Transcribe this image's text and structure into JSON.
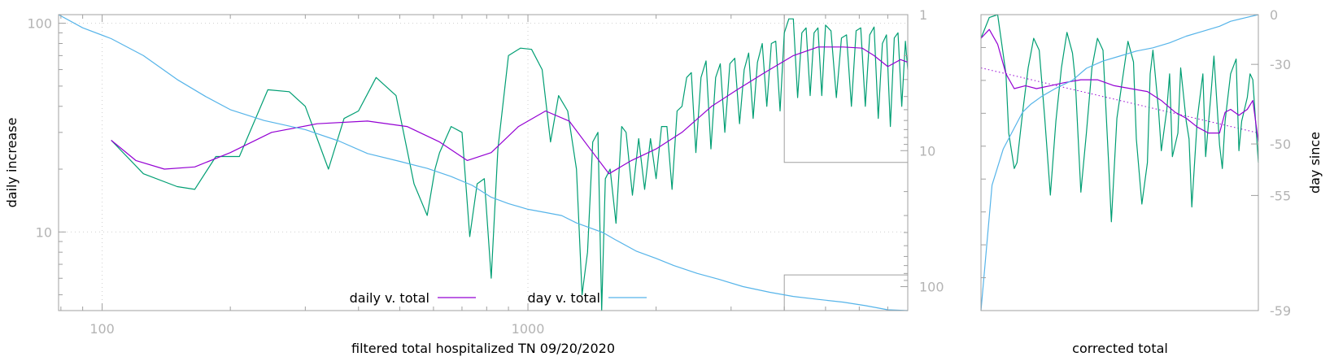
{
  "colors": {
    "daily": "#9400d3",
    "raw": "#009e73",
    "day": "#56b4e9",
    "trend": "#9400d3",
    "frame": "#a0a0a0",
    "grid": "#cfcfcf",
    "tick_text": "#b4b4b4"
  },
  "chart_data": [
    {
      "type": "line",
      "id": "main",
      "xlabel": "filtered total hospitalized TN 09/20/2020",
      "ylabel": "daily increase",
      "y2label": "",
      "xscale": "log",
      "yscale": "log",
      "xlim": [
        79,
        7800
      ],
      "ylim": [
        4.2,
        110
      ],
      "y2lim": [
        1,
        150
      ],
      "y2scale": "log-reversed",
      "xticks": [
        100,
        1000
      ],
      "xtick_labels": [
        "100",
        "1000"
      ],
      "yticks": [
        10,
        100
      ],
      "ytick_labels": [
        "10",
        "100"
      ],
      "y2ticks": [
        1,
        10,
        100
      ],
      "y2tick_labels": [
        "1",
        "10",
        "100"
      ],
      "grid": true,
      "legend_position": "bottom-center",
      "series": [
        {
          "name": "daily v. total",
          "axis": "y",
          "color_key": "daily",
          "x": [
            105,
            120,
            140,
            165,
            200,
            250,
            320,
            420,
            520,
            620,
            720,
            820,
            950,
            1100,
            1250,
            1400,
            1550,
            1750,
            2000,
            2300,
            2700,
            3100,
            3600,
            4200,
            4800,
            5500,
            6100,
            6500,
            7000,
            7500,
            7800
          ],
          "y": [
            27.5,
            22,
            20,
            20.5,
            24,
            30,
            33,
            34,
            32,
            27,
            22,
            24,
            32,
            38,
            34,
            25,
            19,
            22,
            25,
            30,
            40,
            48,
            58,
            70,
            77,
            77,
            76,
            70,
            62,
            67,
            65
          ]
        },
        {
          "name": "",
          "axis": "y",
          "color_key": "raw",
          "x": [
            105,
            125,
            150,
            165,
            185,
            210,
            245,
            275,
            300,
            340,
            370,
            400,
            440,
            490,
            540,
            580,
            605,
            620,
            660,
            700,
            730,
            760,
            790,
            820,
            850,
            900,
            960,
            1020,
            1080,
            1130,
            1180,
            1240,
            1300,
            1340,
            1380,
            1420,
            1460,
            1490,
            1520,
            1560,
            1610,
            1660,
            1700,
            1760,
            1820,
            1880,
            1940,
            2000,
            2060,
            2120,
            2180,
            2240,
            2300,
            2360,
            2420,
            2480,
            2550,
            2620,
            2690,
            2760,
            2830,
            2900,
            2980,
            3060,
            3140,
            3220,
            3300,
            3380,
            3460,
            3550,
            3640,
            3730,
            3820,
            3910,
            4000,
            4100,
            4200,
            4300,
            4400,
            4500,
            4600,
            4700,
            4800,
            4900,
            5000,
            5150,
            5300,
            5450,
            5600,
            5750,
            5900,
            6050,
            6200,
            6350,
            6500,
            6650,
            6800,
            6950,
            7100,
            7250,
            7400,
            7550,
            7700,
            7800
          ],
          "y": [
            27.5,
            19,
            16.5,
            16,
            23,
            23,
            48,
            47,
            40,
            20,
            35,
            38,
            55,
            45,
            17,
            12,
            20,
            24,
            32,
            30,
            9.5,
            17,
            18,
            6,
            25,
            70,
            76,
            75,
            60,
            27,
            45,
            38,
            20,
            5,
            8,
            27,
            30,
            4,
            18,
            20,
            11,
            32,
            30,
            15,
            28,
            16,
            28,
            18,
            32,
            32,
            16,
            38,
            40,
            55,
            58,
            24,
            55,
            66,
            25,
            55,
            64,
            30,
            64,
            68,
            33,
            60,
            72,
            35,
            65,
            80,
            40,
            80,
            82,
            38,
            90,
            105,
            105,
            44,
            90,
            95,
            45,
            90,
            95,
            45,
            98,
            92,
            44,
            85,
            88,
            40,
            92,
            95,
            40,
            88,
            96,
            35,
            80,
            88,
            32,
            85,
            90,
            40,
            82,
            60
          ]
        },
        {
          "name": "day v. total",
          "axis": "y2",
          "color_key": "day",
          "x": [
            79,
            90,
            105,
            125,
            150,
            175,
            200,
            240,
            300,
            360,
            420,
            500,
            580,
            660,
            740,
            820,
            900,
            1000,
            1100,
            1200,
            1300,
            1400,
            1500,
            1600,
            1800,
            2000,
            2200,
            2500,
            2800,
            3200,
            3700,
            4200,
            4800,
            5500,
            6200,
            7000,
            7800
          ],
          "y": [
            1.0,
            1.25,
            1.5,
            2.0,
            3.0,
            4.0,
            5.0,
            6.0,
            7.0,
            8.5,
            10.5,
            12.0,
            13.5,
            15.5,
            18.0,
            22.0,
            24.5,
            27.0,
            28.5,
            30.0,
            34.0,
            37.0,
            40.0,
            45.0,
            55.0,
            62.0,
            70.0,
            80.0,
            88.0,
            100.0,
            110.0,
            118.0,
            124.0,
            130.0,
            138.0,
            148.0,
            158.0
          ]
        }
      ]
    },
    {
      "type": "line",
      "id": "inset",
      "xlabel": "corrected total",
      "ylabel": "",
      "y2label": "day since",
      "xlim": [
        0,
        1
      ],
      "ylim": [
        0,
        1
      ],
      "y2lim": [
        -59,
        0
      ],
      "y2ticks": [
        0,
        -30,
        -50,
        -55,
        -59
      ],
      "y2tick_labels": [
        "0",
        "-30",
        "-50",
        "-55",
        "-59"
      ],
      "y2_tick_positions": [
        0,
        0.168,
        0.437,
        0.611,
        1.0
      ],
      "legend_position": "none",
      "series": [
        {
          "name": "",
          "color_key": "raw",
          "x": [
            0,
            0.03,
            0.06,
            0.09,
            0.1,
            0.12,
            0.13,
            0.15,
            0.17,
            0.19,
            0.21,
            0.23,
            0.25,
            0.27,
            0.29,
            0.31,
            0.33,
            0.34,
            0.36,
            0.38,
            0.4,
            0.42,
            0.44,
            0.46,
            0.47,
            0.49,
            0.51,
            0.53,
            0.55,
            0.56,
            0.58,
            0.6,
            0.61,
            0.62,
            0.64,
            0.65,
            0.67,
            0.68,
            0.69,
            0.71,
            0.72,
            0.74,
            0.75,
            0.76,
            0.78,
            0.8,
            0.81,
            0.83,
            0.84,
            0.86,
            0.87,
            0.88,
            0.9,
            0.92,
            0.93,
            0.94,
            0.96,
            0.97,
            0.98,
            1.0
          ],
          "y": [
            0.08,
            0.01,
            0.0,
            0.2,
            0.4,
            0.52,
            0.5,
            0.33,
            0.18,
            0.08,
            0.12,
            0.35,
            0.61,
            0.36,
            0.18,
            0.06,
            0.13,
            0.22,
            0.6,
            0.4,
            0.18,
            0.08,
            0.12,
            0.5,
            0.7,
            0.35,
            0.22,
            0.09,
            0.16,
            0.42,
            0.64,
            0.5,
            0.2,
            0.12,
            0.32,
            0.46,
            0.32,
            0.2,
            0.48,
            0.4,
            0.18,
            0.36,
            0.42,
            0.65,
            0.35,
            0.2,
            0.48,
            0.26,
            0.14,
            0.44,
            0.52,
            0.36,
            0.2,
            0.15,
            0.46,
            0.36,
            0.28,
            0.2,
            0.22,
            0.5
          ]
        },
        {
          "name": "",
          "color_key": "daily",
          "x": [
            0,
            0.03,
            0.06,
            0.09,
            0.12,
            0.16,
            0.2,
            0.25,
            0.3,
            0.36,
            0.42,
            0.48,
            0.54,
            0.6,
            0.65,
            0.7,
            0.74,
            0.78,
            0.82,
            0.86,
            0.88,
            0.9,
            0.93,
            0.96,
            0.98,
            1.0
          ],
          "y": [
            0.08,
            0.05,
            0.1,
            0.2,
            0.25,
            0.24,
            0.25,
            0.24,
            0.23,
            0.22,
            0.22,
            0.24,
            0.25,
            0.26,
            0.29,
            0.33,
            0.35,
            0.38,
            0.4,
            0.4,
            0.33,
            0.32,
            0.34,
            0.32,
            0.29,
            0.43
          ]
        },
        {
          "name": "",
          "color_key": "day",
          "x": [
            0,
            0.04,
            0.08,
            0.12,
            0.15,
            0.18,
            0.22,
            0.27,
            0.33,
            0.38,
            0.44,
            0.5,
            0.56,
            0.62,
            0.68,
            0.74,
            0.8,
            0.86,
            0.9,
            0.95,
            1.0
          ],
          "y": [
            -59.0,
            -54.0,
            -50.5,
            -46.0,
            -42.0,
            -40.0,
            -38.0,
            -36.0,
            -34.0,
            -31.0,
            -28.0,
            -25.0,
            -22.0,
            -20.0,
            -17.0,
            -13.0,
            -10.0,
            -7.0,
            -4.0,
            -2.0,
            0.0
          ]
        },
        {
          "name": "",
          "color_key": "trend",
          "style": "dotted",
          "x": [
            0,
            1
          ],
          "y": [
            0.18,
            0.4
          ]
        }
      ]
    }
  ]
}
